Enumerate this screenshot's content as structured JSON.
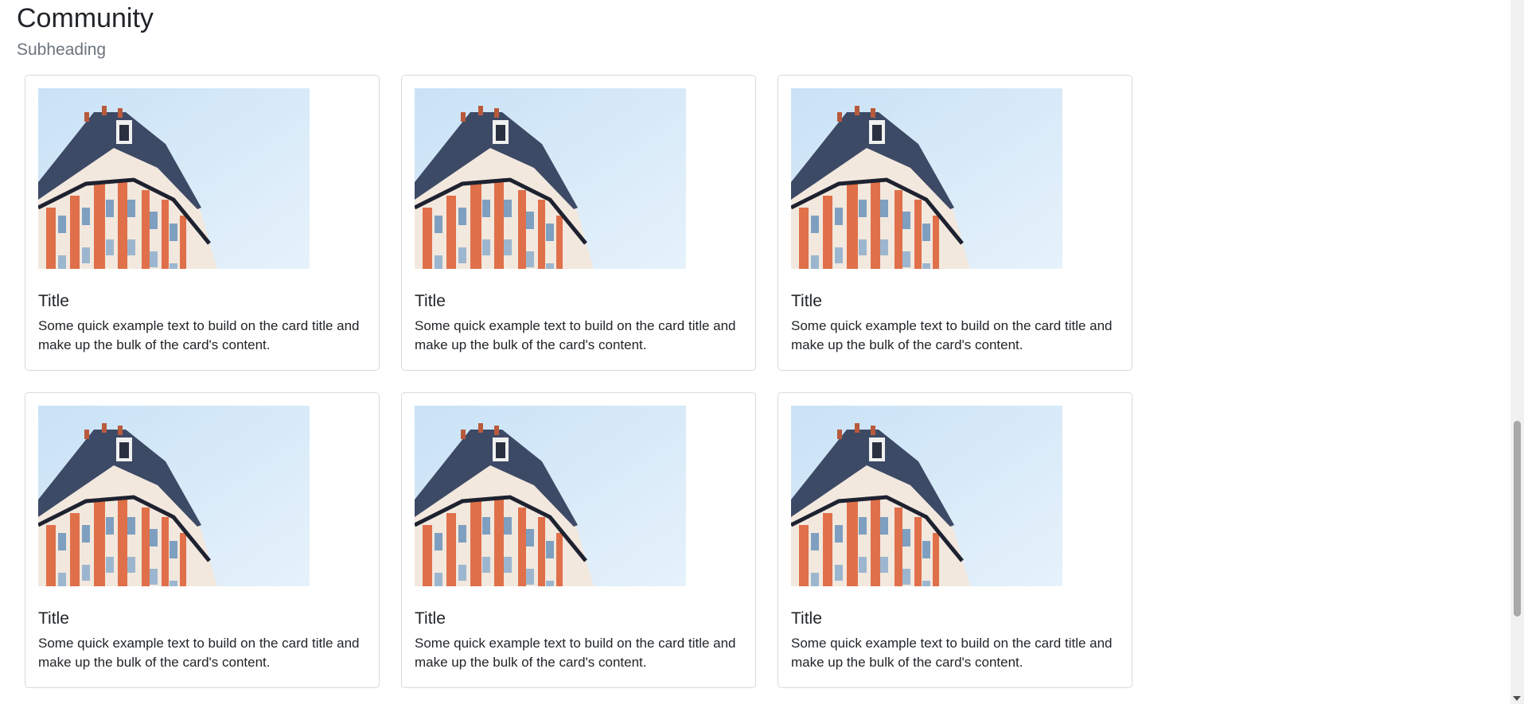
{
  "page": {
    "title": "Community",
    "subtitle": "Subheading"
  },
  "cards": [
    {
      "title": "Title",
      "text": "Some quick example text to build on the card title and make up the bulk of the card's content.",
      "image": "building-photo"
    },
    {
      "title": "Title",
      "text": "Some quick example text to build on the card title and make up the bulk of the card's content.",
      "image": "building-photo"
    },
    {
      "title": "Title",
      "text": "Some quick example text to build on the card title and make up the bulk of the card's content.",
      "image": "building-photo"
    },
    {
      "title": "Title",
      "text": "Some quick example text to build on the card title and make up the bulk of the card's content.",
      "image": "building-photo"
    },
    {
      "title": "Title",
      "text": "Some quick example text to build on the card title and make up the bulk of the card's content.",
      "image": "building-photo"
    },
    {
      "title": "Title",
      "text": "Some quick example text to build on the card title and make up the bulk of the card's content.",
      "image": "building-photo"
    }
  ],
  "colors": {
    "sky": "#d4e8f7",
    "roof": "#3d4a66",
    "facade_orange": "#e0704a",
    "facade_light": "#f2e8de",
    "border": "#d8dadd",
    "muted": "#6c757d"
  }
}
